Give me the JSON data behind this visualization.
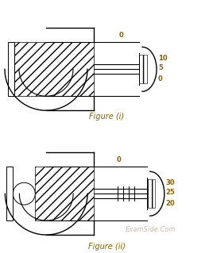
{
  "fig1_label": "Figure (i)",
  "fig2_label": "Figure (ii)",
  "watermark": "ExamSide.Com",
  "fig1_scale_labels": [
    "10",
    "5",
    "0"
  ],
  "fig1_main_scale_label": "0",
  "fig2_scale_labels": [
    "30",
    "25",
    "20"
  ],
  "fig2_main_scale_label": "0",
  "label_color": "#8B6000",
  "black": "#000000",
  "white": "#ffffff",
  "watermark_color": "#c0b090",
  "bg_color": "#ffffff"
}
